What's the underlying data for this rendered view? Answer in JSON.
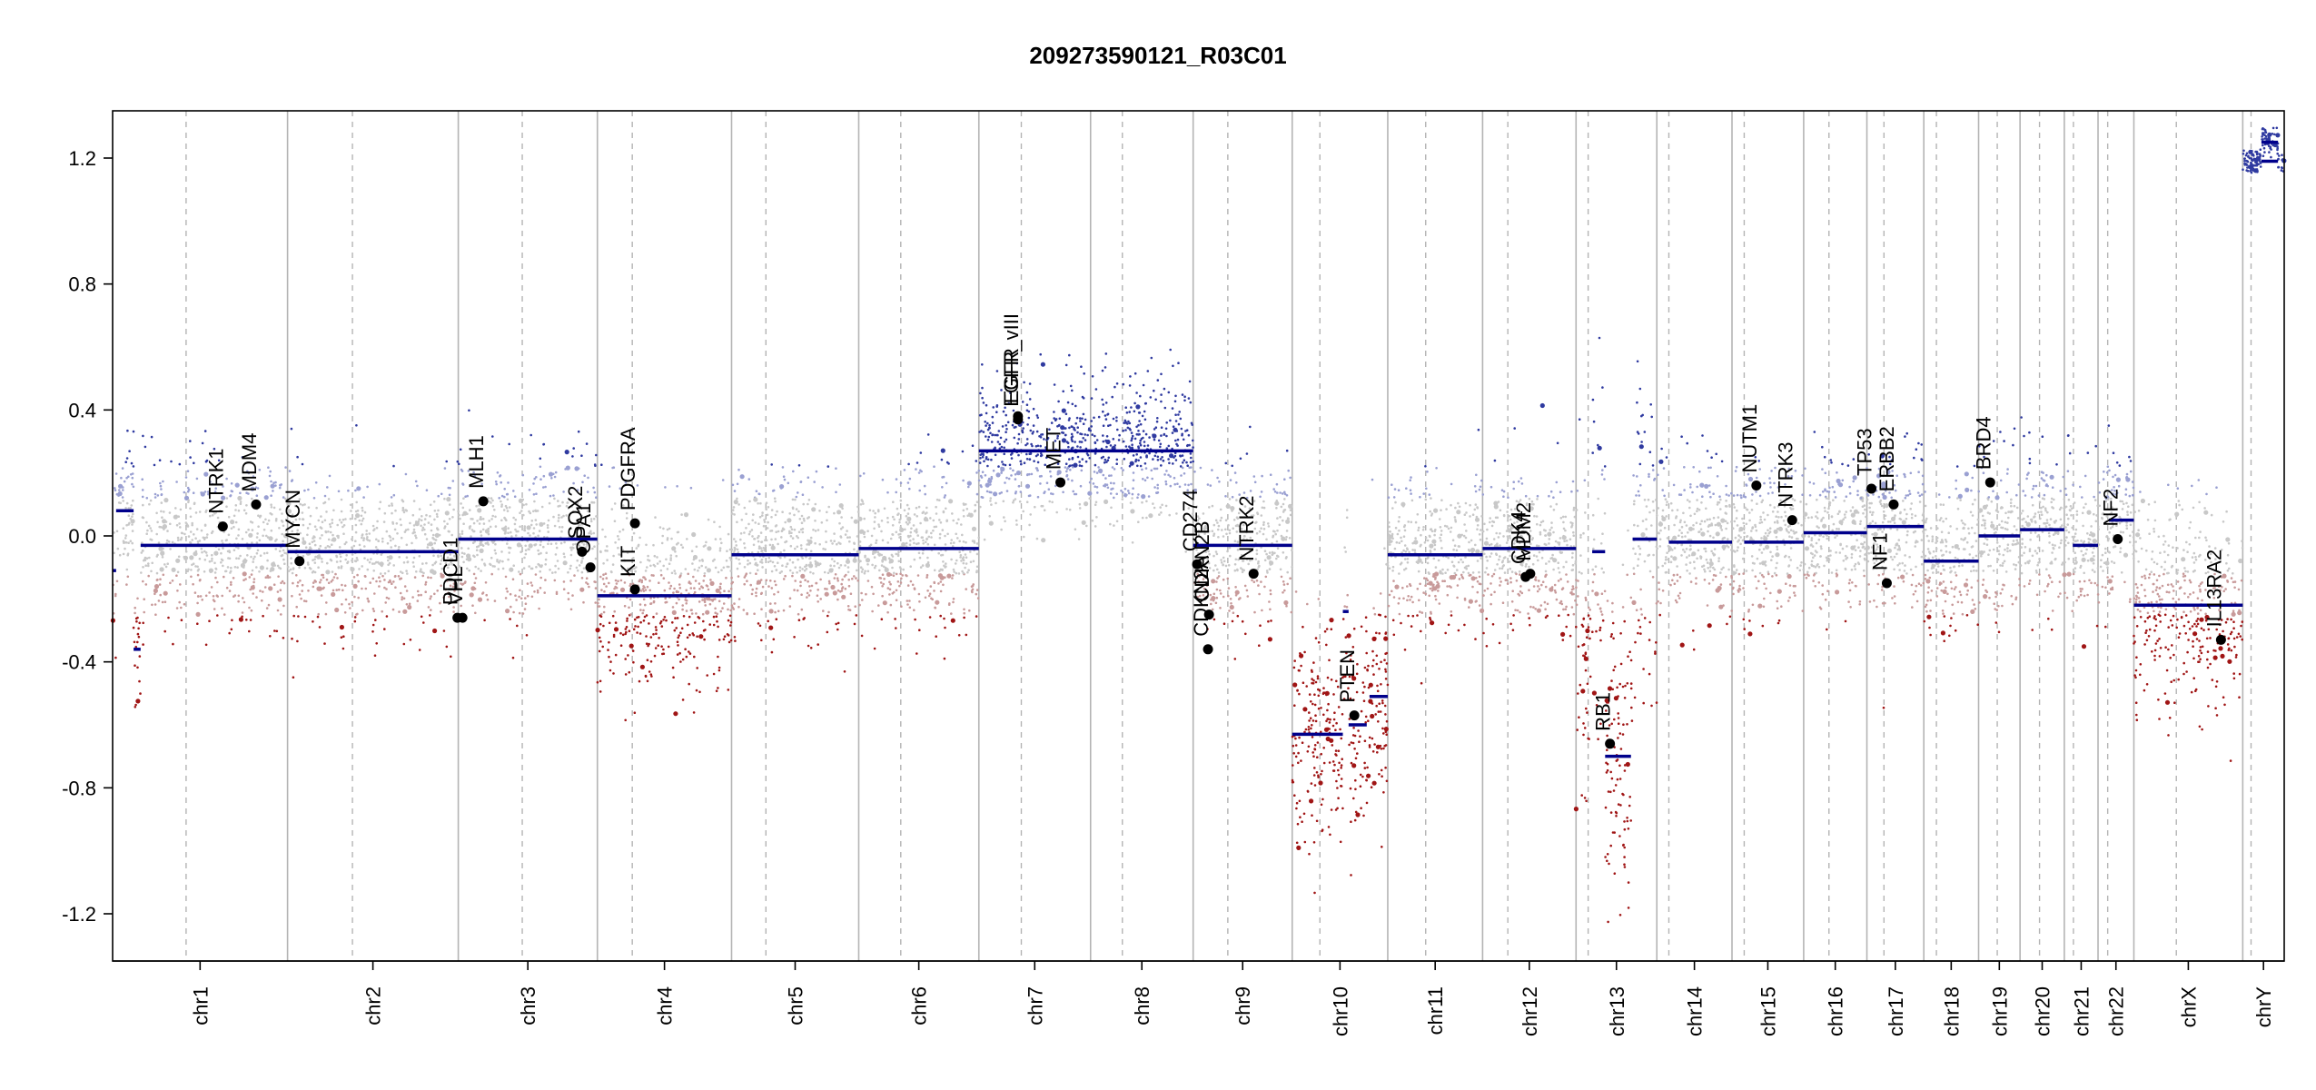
{
  "chart_data": {
    "type": "scatter",
    "title": "209273590121_R03C01",
    "xlabel": "",
    "ylabel": "",
    "ylim": [
      -1.35,
      1.35
    ],
    "y_ticks": [
      -1.2,
      -0.8,
      -0.4,
      0.0,
      0.4,
      0.8,
      1.2
    ],
    "y_tick_labels": [
      "-1.2",
      "-0.8",
      "-0.4",
      "0.0",
      "0.4",
      "0.8",
      "1.2"
    ],
    "colors": {
      "gain": "#2f3aa0",
      "gain_light": "#9aa0d2",
      "neutral": "#c8c8c8",
      "loss": "#a01515",
      "loss_light": "#c89a9a",
      "segment": "#00008b",
      "gene_point": "#000000",
      "axis": "#000000",
      "chr_boundary": "#b4b4b4",
      "centromere": "#b4b4b4"
    },
    "chromosomes": [
      {
        "name": "chr1",
        "len": 249,
        "cen": 0.42
      },
      {
        "name": "chr2",
        "len": 243,
        "cen": 0.38
      },
      {
        "name": "chr3",
        "len": 198,
        "cen": 0.46
      },
      {
        "name": "chr4",
        "len": 191,
        "cen": 0.26
      },
      {
        "name": "chr5",
        "len": 181,
        "cen": 0.27
      },
      {
        "name": "chr6",
        "len": 171,
        "cen": 0.35
      },
      {
        "name": "chr7",
        "len": 159,
        "cen": 0.38
      },
      {
        "name": "chr8",
        "len": 146,
        "cen": 0.31
      },
      {
        "name": "chr9",
        "len": 141,
        "cen": 0.35
      },
      {
        "name": "chr10",
        "len": 136,
        "cen": 0.29
      },
      {
        "name": "chr11",
        "len": 135,
        "cen": 0.4
      },
      {
        "name": "chr12",
        "len": 133,
        "cen": 0.27
      },
      {
        "name": "chr13",
        "len": 115,
        "cen": 0.15
      },
      {
        "name": "chr14",
        "len": 107,
        "cen": 0.16
      },
      {
        "name": "chr15",
        "len": 102,
        "cen": 0.17
      },
      {
        "name": "chr16",
        "len": 90,
        "cen": 0.4
      },
      {
        "name": "chr17",
        "len": 81,
        "cen": 0.3
      },
      {
        "name": "chr18",
        "len": 78,
        "cen": 0.23
      },
      {
        "name": "chr19",
        "len": 59,
        "cen": 0.45
      },
      {
        "name": "chr20",
        "len": 63,
        "cen": 0.44
      },
      {
        "name": "chr21",
        "len": 48,
        "cen": 0.27
      },
      {
        "name": "chr22",
        "len": 51,
        "cen": 0.27
      },
      {
        "name": "chrX",
        "len": 155,
        "cen": 0.39
      },
      {
        "name": "chrY",
        "len": 59,
        "cen": 0.2
      }
    ],
    "segments": [
      {
        "chr": "chr1",
        "start": 0.0,
        "end": 0.02,
        "value": -0.11
      },
      {
        "chr": "chr1",
        "start": 0.02,
        "end": 0.12,
        "value": 0.08
      },
      {
        "chr": "chr1",
        "start": 0.12,
        "end": 0.16,
        "value": -0.36
      },
      {
        "chr": "chr1",
        "start": 0.16,
        "end": 1.0,
        "value": -0.03
      },
      {
        "chr": "chr2",
        "start": 0.0,
        "end": 1.0,
        "value": -0.05
      },
      {
        "chr": "chr3",
        "start": 0.0,
        "end": 1.0,
        "value": -0.01
      },
      {
        "chr": "chr4",
        "start": 0.0,
        "end": 1.0,
        "value": -0.19
      },
      {
        "chr": "chr5",
        "start": 0.0,
        "end": 1.0,
        "value": -0.06
      },
      {
        "chr": "chr6",
        "start": 0.0,
        "end": 1.0,
        "value": -0.04
      },
      {
        "chr": "chr7",
        "start": 0.0,
        "end": 1.0,
        "value": 0.27
      },
      {
        "chr": "chr8",
        "start": 0.0,
        "end": 1.0,
        "value": 0.27
      },
      {
        "chr": "chr9",
        "start": 0.0,
        "end": 1.0,
        "value": -0.03
      },
      {
        "chr": "chr10",
        "start": 0.0,
        "end": 0.53,
        "value": -0.63
      },
      {
        "chr": "chr10",
        "start": 0.53,
        "end": 0.59,
        "value": -0.24
      },
      {
        "chr": "chr10",
        "start": 0.59,
        "end": 0.78,
        "value": -0.6
      },
      {
        "chr": "chr10",
        "start": 0.81,
        "end": 1.0,
        "value": -0.51
      },
      {
        "chr": "chr11",
        "start": 0.0,
        "end": 1.0,
        "value": -0.06
      },
      {
        "chr": "chr12",
        "start": 0.0,
        "end": 1.0,
        "value": -0.04
      },
      {
        "chr": "chr13",
        "start": 0.2,
        "end": 0.36,
        "value": -0.05
      },
      {
        "chr": "chr13",
        "start": 0.36,
        "end": 0.68,
        "value": -0.7
      },
      {
        "chr": "chr13",
        "start": 0.7,
        "end": 1.0,
        "value": -0.01
      },
      {
        "chr": "chr14",
        "start": 0.16,
        "end": 1.0,
        "value": -0.02
      },
      {
        "chr": "chr15",
        "start": 0.17,
        "end": 1.0,
        "value": -0.02
      },
      {
        "chr": "chr16",
        "start": 0.0,
        "end": 1.0,
        "value": 0.01
      },
      {
        "chr": "chr17",
        "start": 0.0,
        "end": 1.0,
        "value": 0.03
      },
      {
        "chr": "chr18",
        "start": 0.0,
        "end": 1.0,
        "value": -0.08
      },
      {
        "chr": "chr19",
        "start": 0.0,
        "end": 1.0,
        "value": 0.0
      },
      {
        "chr": "chr20",
        "start": 0.0,
        "end": 1.0,
        "value": 0.02
      },
      {
        "chr": "chr21",
        "start": 0.25,
        "end": 1.0,
        "value": -0.03
      },
      {
        "chr": "chr22",
        "start": 0.3,
        "end": 1.0,
        "value": 0.05
      },
      {
        "chr": "chrX",
        "start": 0.0,
        "end": 1.0,
        "value": -0.22
      },
      {
        "chr": "chrY",
        "start": 0.45,
        "end": 0.85,
        "value": 1.19
      },
      {
        "chr": "chrY",
        "start": 0.45,
        "end": 0.85,
        "value": 1.25
      }
    ],
    "genes": [
      {
        "name": "NTRK1",
        "chr": "chr1",
        "pos": 0.63,
        "value": 0.03
      },
      {
        "name": "MDM4",
        "chr": "chr1",
        "pos": 0.82,
        "value": 0.1
      },
      {
        "name": "MYCN",
        "chr": "chr2",
        "pos": 0.07,
        "value": -0.08
      },
      {
        "name": "PDCD1",
        "chr": "chr2",
        "pos": 0.995,
        "value": -0.26
      },
      {
        "name": "VHL",
        "chr": "chr3",
        "pos": 0.03,
        "value": -0.26
      },
      {
        "name": "MLH1",
        "chr": "chr3",
        "pos": 0.18,
        "value": 0.11
      },
      {
        "name": "SOX2",
        "chr": "chr3",
        "pos": 0.89,
        "value": -0.05
      },
      {
        "name": "OPA1",
        "chr": "chr3",
        "pos": 0.95,
        "value": -0.1
      },
      {
        "name": "PDGFRA",
        "chr": "chr4",
        "pos": 0.28,
        "value": 0.04
      },
      {
        "name": "KIT",
        "chr": "chr4",
        "pos": 0.28,
        "value": -0.17
      },
      {
        "name": "EGFR",
        "chr": "chr7",
        "pos": 0.35,
        "value": 0.38
      },
      {
        "name": "EGFR_vIII",
        "chr": "chr7",
        "pos": 0.35,
        "value": 0.37
      },
      {
        "name": "MET",
        "chr": "chr7",
        "pos": 0.73,
        "value": 0.17
      },
      {
        "name": "CD274",
        "chr": "chr9",
        "pos": 0.04,
        "value": -0.09
      },
      {
        "name": "CDKN2A",
        "chr": "chr9",
        "pos": 0.15,
        "value": -0.36
      },
      {
        "name": "CDKN2B",
        "chr": "chr9",
        "pos": 0.16,
        "value": -0.25
      },
      {
        "name": "NTRK2",
        "chr": "chr9",
        "pos": 0.61,
        "value": -0.12
      },
      {
        "name": "PTEN",
        "chr": "chr10",
        "pos": 0.65,
        "value": -0.57
      },
      {
        "name": "CDK4",
        "chr": "chr12",
        "pos": 0.46,
        "value": -0.13
      },
      {
        "name": "MDM2",
        "chr": "chr12",
        "pos": 0.51,
        "value": -0.12
      },
      {
        "name": "RB1",
        "chr": "chr13",
        "pos": 0.42,
        "value": -0.66
      },
      {
        "name": "NUTM1",
        "chr": "chr15",
        "pos": 0.34,
        "value": 0.16
      },
      {
        "name": "NTRK3",
        "chr": "chr15",
        "pos": 0.84,
        "value": 0.05
      },
      {
        "name": "TP53",
        "chr": "chr17",
        "pos": 0.08,
        "value": 0.15
      },
      {
        "name": "NF1",
        "chr": "chr17",
        "pos": 0.35,
        "value": -0.15
      },
      {
        "name": "ERBB2",
        "chr": "chr17",
        "pos": 0.47,
        "value": 0.1
      },
      {
        "name": "BRD4",
        "chr": "chr19",
        "pos": 0.28,
        "value": 0.17
      },
      {
        "name": "NF2",
        "chr": "chr22",
        "pos": 0.55,
        "value": -0.01
      },
      {
        "name": "IL13RA2",
        "chr": "chrX",
        "pos": 0.8,
        "value": -0.33
      }
    ],
    "probe_density": [
      {
        "chr": "chr1",
        "level": -0.03,
        "spread": 0.13
      },
      {
        "chr": "chr2",
        "level": -0.05,
        "spread": 0.12
      },
      {
        "chr": "chr3",
        "level": -0.01,
        "spread": 0.12
      },
      {
        "chr": "chr4",
        "level": -0.19,
        "spread": 0.14
      },
      {
        "chr": "chr5",
        "level": -0.06,
        "spread": 0.12
      },
      {
        "chr": "chr6",
        "level": -0.04,
        "spread": 0.12
      },
      {
        "chr": "chr7",
        "level": 0.27,
        "spread": 0.11
      },
      {
        "chr": "chr8",
        "level": 0.27,
        "spread": 0.11
      },
      {
        "chr": "chr9",
        "level": -0.03,
        "spread": 0.12
      },
      {
        "chr": "chr10",
        "level": -0.62,
        "spread": 0.18
      },
      {
        "chr": "chr11",
        "level": -0.06,
        "spread": 0.12
      },
      {
        "chr": "chr12",
        "level": -0.04,
        "spread": 0.12
      },
      {
        "chr": "chr13",
        "level": -0.3,
        "spread": 0.25
      },
      {
        "chr": "chr14",
        "level": -0.02,
        "spread": 0.12
      },
      {
        "chr": "chr15",
        "level": -0.02,
        "spread": 0.12
      },
      {
        "chr": "chr16",
        "level": 0.01,
        "spread": 0.12
      },
      {
        "chr": "chr17",
        "level": 0.03,
        "spread": 0.12
      },
      {
        "chr": "chr18",
        "level": -0.08,
        "spread": 0.12
      },
      {
        "chr": "chr19",
        "level": 0.0,
        "spread": 0.12
      },
      {
        "chr": "chr20",
        "level": 0.02,
        "spread": 0.12
      },
      {
        "chr": "chr21",
        "level": -0.03,
        "spread": 0.12
      },
      {
        "chr": "chr22",
        "level": 0.05,
        "spread": 0.12
      },
      {
        "chr": "chrX",
        "level": -0.22,
        "spread": 0.16
      },
      {
        "chr": "chrY",
        "level": 1.19,
        "spread": 0.02
      }
    ],
    "grid": false,
    "legend": "none"
  }
}
